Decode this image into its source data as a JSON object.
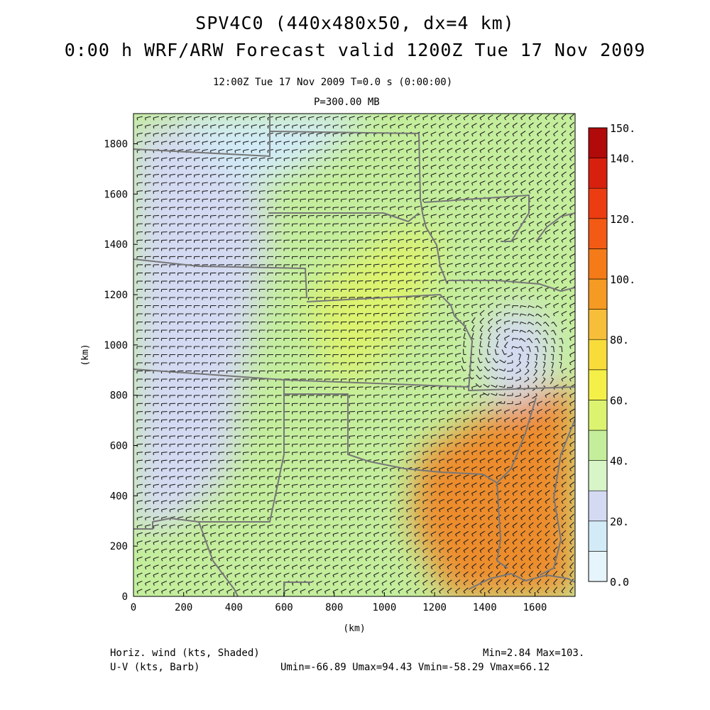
{
  "header": {
    "title_line1": "SPV4C0 (440x480x50, dx=4 km)",
    "title_line2": "0:00 h WRF/ARW Forecast valid 1200Z Tue 17 Nov 2009",
    "time_line": "12:00Z Tue 17 Nov 2009    T=0.0 s (0:00:00)",
    "level_line": "P=300.00 MB"
  },
  "footer": {
    "field_shaded": "Horiz. wind (kts, Shaded)",
    "field_barb": "U-V (kts, Barb)",
    "minmax": "Min=2.84 Max=103.",
    "uv_stats": "Umin=-66.89 Umax=94.43 Vmin=-58.29 Vmax=66.12"
  },
  "map": {
    "x_axis_label": "(km)",
    "y_axis_label": "(km)",
    "x_ticks": [
      "0",
      "200",
      "400",
      "600",
      "800",
      "1000",
      "1200",
      "1400",
      "1600"
    ],
    "y_ticks": [
      "0",
      "200",
      "400",
      "600",
      "800",
      "1000",
      "1200",
      "1400",
      "1600",
      "1800"
    ],
    "x_range_km": [
      0,
      1760
    ],
    "y_range_km": [
      0,
      1920
    ]
  },
  "colorbar": {
    "labels": [
      "150.",
      "140.",
      "120.",
      "100.",
      "80.",
      "60.",
      "40.",
      "20.",
      "0.0"
    ],
    "bins": [
      {
        "min": 0,
        "max": 10,
        "color": "#e6f4fb"
      },
      {
        "min": 10,
        "max": 20,
        "color": "#d2ebf7"
      },
      {
        "min": 20,
        "max": 30,
        "color": "#d4daf2"
      },
      {
        "min": 30,
        "max": 40,
        "color": "#d8f5c8"
      },
      {
        "min": 40,
        "max": 50,
        "color": "#c4ee9c"
      },
      {
        "min": 50,
        "max": 60,
        "color": "#dcf370"
      },
      {
        "min": 60,
        "max": 70,
        "color": "#f5f048"
      },
      {
        "min": 70,
        "max": 80,
        "color": "#f8dc3a"
      },
      {
        "min": 80,
        "max": 90,
        "color": "#f7be3a"
      },
      {
        "min": 90,
        "max": 100,
        "color": "#f59a22"
      },
      {
        "min": 100,
        "max": 110,
        "color": "#f47b18"
      },
      {
        "min": 110,
        "max": 120,
        "color": "#f35a14"
      },
      {
        "min": 120,
        "max": 130,
        "color": "#ec3c12"
      },
      {
        "min": 130,
        "max": 140,
        "color": "#d8200e"
      },
      {
        "min": 140,
        "max": 150,
        "color": "#b00a0a"
      }
    ]
  },
  "wind_field": {
    "background_color": "#c4ee9c",
    "regions": [
      {
        "name": "northwest-weak",
        "color": "#d4daf2",
        "speed_kts": 25
      },
      {
        "name": "north-weak",
        "color": "#d2ebf7",
        "speed_kts": 18
      },
      {
        "name": "central-jet",
        "color": "#dcf370",
        "speed_kts": 55
      },
      {
        "name": "east-closed-low",
        "color": "#d4daf2",
        "speed_kts": 22
      },
      {
        "name": "southeast-jet-max",
        "color": "#f47b18",
        "speed_kts": 100
      }
    ]
  }
}
